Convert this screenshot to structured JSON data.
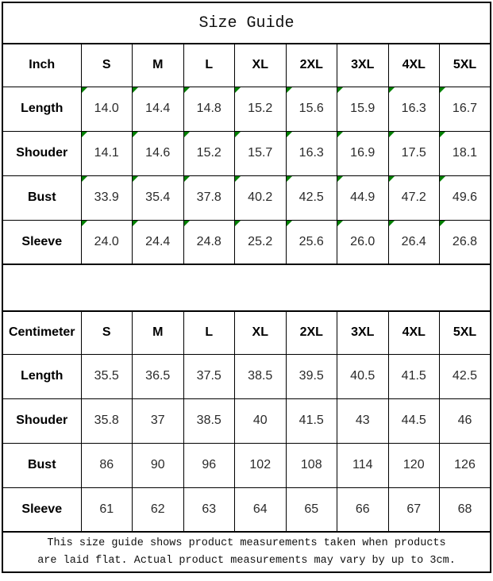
{
  "title": "Size Guide",
  "inch_table": {
    "unit_label": "Inch",
    "sizes": [
      "S",
      "M",
      "L",
      "XL",
      "2XL",
      "3XL",
      "4XL",
      "5XL"
    ],
    "rows": [
      {
        "label": "Length",
        "values": [
          "14.0",
          "14.4",
          "14.8",
          "15.2",
          "15.6",
          "15.9",
          "16.3",
          "16.7"
        ]
      },
      {
        "label": "Shouder",
        "values": [
          "14.1",
          "14.6",
          "15.2",
          "15.7",
          "16.3",
          "16.9",
          "17.5",
          "18.1"
        ]
      },
      {
        "label": "Bust",
        "values": [
          "33.9",
          "35.4",
          "37.8",
          "40.2",
          "42.5",
          "44.9",
          "47.2",
          "49.6"
        ]
      },
      {
        "label": "Sleeve",
        "values": [
          "24.0",
          "24.4",
          "24.8",
          "25.2",
          "25.6",
          "26.0",
          "26.4",
          "26.8"
        ]
      }
    ],
    "has_cell_markers": true
  },
  "cm_table": {
    "unit_label": "Centimeter",
    "sizes": [
      "S",
      "M",
      "L",
      "XL",
      "2XL",
      "3XL",
      "4XL",
      "5XL"
    ],
    "rows": [
      {
        "label": "Length",
        "values": [
          "35.5",
          "36.5",
          "37.5",
          "38.5",
          "39.5",
          "40.5",
          "41.5",
          "42.5"
        ]
      },
      {
        "label": "Shouder",
        "values": [
          "35.8",
          "37",
          "38.5",
          "40",
          "41.5",
          "43",
          "44.5",
          "46"
        ]
      },
      {
        "label": "Bust",
        "values": [
          "86",
          "90",
          "96",
          "102",
          "108",
          "114",
          "120",
          "126"
        ]
      },
      {
        "label": "Sleeve",
        "values": [
          "61",
          "62",
          "63",
          "64",
          "65",
          "66",
          "67",
          "68"
        ]
      }
    ],
    "has_cell_markers": false
  },
  "footer": {
    "lines": [
      "This size guide shows product measurements taken when products",
      "are laid flat. Actual product measurements may vary by up to 3cm."
    ]
  },
  "icons": {
    "cell_marker": "green-corner-flag-icon"
  },
  "colors": {
    "background": "#ffffff",
    "border": "#000000",
    "marker_green": "#008000",
    "heading_text": "#000000",
    "value_text": "#2b2b2b"
  },
  "chart_data": [
    {
      "type": "table",
      "unit": "Inch",
      "columns": [
        "Inch",
        "S",
        "M",
        "L",
        "XL",
        "2XL",
        "3XL",
        "4XL",
        "5XL"
      ],
      "rows": [
        [
          "Length",
          14.0,
          14.4,
          14.8,
          15.2,
          15.6,
          15.9,
          16.3,
          16.7
        ],
        [
          "Shouder",
          14.1,
          14.6,
          15.2,
          15.7,
          16.3,
          16.9,
          17.5,
          18.1
        ],
        [
          "Bust",
          33.9,
          35.4,
          37.8,
          40.2,
          42.5,
          44.9,
          47.2,
          49.6
        ],
        [
          "Sleeve",
          24.0,
          24.4,
          24.8,
          25.2,
          25.6,
          26.0,
          26.4,
          26.8
        ]
      ]
    },
    {
      "type": "table",
      "unit": "Centimeter",
      "columns": [
        "Centimeter",
        "S",
        "M",
        "L",
        "XL",
        "2XL",
        "3XL",
        "4XL",
        "5XL"
      ],
      "rows": [
        [
          "Length",
          35.5,
          36.5,
          37.5,
          38.5,
          39.5,
          40.5,
          41.5,
          42.5
        ],
        [
          "Shouder",
          35.8,
          37,
          38.5,
          40,
          41.5,
          43,
          44.5,
          46
        ],
        [
          "Bust",
          86,
          90,
          96,
          102,
          108,
          114,
          120,
          126
        ],
        [
          "Sleeve",
          61,
          62,
          63,
          64,
          65,
          66,
          67,
          68
        ]
      ]
    }
  ]
}
